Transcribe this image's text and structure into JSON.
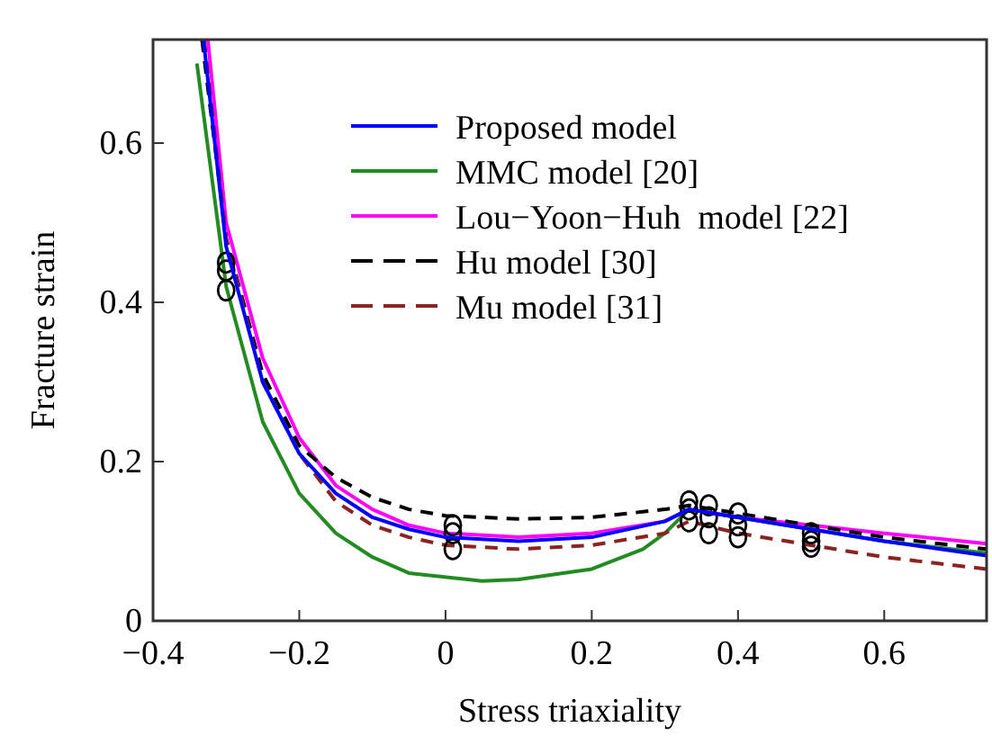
{
  "chart_data": {
    "type": "line",
    "xlabel": "Stress triaxiality",
    "ylabel": "Fracture strain",
    "xlim": [
      -0.4,
      0.74
    ],
    "ylim": [
      0,
      0.73
    ],
    "xticks": [
      {
        "value": -0.4,
        "label": "−0.4"
      },
      {
        "value": -0.2,
        "label": "−0.2"
      },
      0,
      0.2,
      0.4,
      0.6
    ],
    "yticks": [
      0,
      0.2,
      0.4,
      0.6
    ],
    "legend": "top right",
    "grid": false,
    "series": [
      {
        "name": "Proposed model",
        "color": "#0000ff",
        "line_style": "solid",
        "marker": "none",
        "x": [
          -0.331,
          -0.3,
          -0.25,
          -0.2,
          -0.15,
          -0.1,
          -0.05,
          0,
          0.1,
          0.2,
          0.3,
          0.333,
          0.4,
          0.5,
          0.6,
          0.74
        ],
        "values": [
          0.73,
          0.47,
          0.3,
          0.21,
          0.16,
          0.13,
          0.115,
          0.105,
          0.1,
          0.105,
          0.125,
          0.14,
          0.13,
          0.115,
          0.1,
          0.082
        ]
      },
      {
        "name": "MMC model [20]",
        "color": "#228b22",
        "line_style": "solid",
        "marker": "none",
        "x": [
          -0.34,
          -0.3,
          -0.25,
          -0.2,
          -0.15,
          -0.1,
          -0.05,
          0.05,
          0.1,
          0.2,
          0.27,
          0.3,
          0.333,
          0.4,
          0.5,
          0.6,
          0.74
        ],
        "values": [
          0.7,
          0.42,
          0.25,
          0.16,
          0.11,
          0.08,
          0.06,
          0.05,
          0.052,
          0.065,
          0.09,
          0.11,
          0.14,
          0.13,
          0.115,
          0.1,
          0.085
        ]
      },
      {
        "name": "Lou−Yoon−Huh  model [22]",
        "color": "#ff00ff",
        "line_style": "solid",
        "marker": "none",
        "x": [
          -0.325,
          -0.3,
          -0.25,
          -0.2,
          -0.15,
          -0.1,
          -0.05,
          0,
          0.1,
          0.2,
          0.3,
          0.333,
          0.4,
          0.5,
          0.6,
          0.74
        ],
        "values": [
          0.73,
          0.5,
          0.33,
          0.23,
          0.17,
          0.14,
          0.12,
          0.11,
          0.105,
          0.11,
          0.125,
          0.14,
          0.13,
          0.12,
          0.11,
          0.097
        ]
      },
      {
        "name": "Hu model [30]",
        "color": "#000000",
        "line_style": "dashed",
        "marker": "none",
        "x": [
          -0.333,
          -0.3,
          -0.25,
          -0.2,
          -0.15,
          -0.1,
          -0.05,
          0,
          0.1,
          0.2,
          0.3,
          0.333,
          0.4,
          0.5,
          0.6,
          0.74
        ],
        "values": [
          0.73,
          0.48,
          0.31,
          0.22,
          0.18,
          0.155,
          0.14,
          0.132,
          0.128,
          0.13,
          0.14,
          0.145,
          0.135,
          0.12,
          0.105,
          0.09
        ]
      },
      {
        "name": "Mu model [31]",
        "color": "#8b2323",
        "line_style": "dashed",
        "marker": "none",
        "x": [
          -0.33,
          -0.3,
          -0.25,
          -0.2,
          -0.15,
          -0.1,
          -0.05,
          0,
          0.1,
          0.2,
          0.3,
          0.333,
          0.4,
          0.5,
          0.6,
          0.74
        ],
        "values": [
          0.73,
          0.48,
          0.3,
          0.21,
          0.15,
          0.12,
          0.105,
          0.095,
          0.09,
          0.095,
          0.11,
          0.125,
          0.11,
          0.095,
          0.08,
          0.065
        ]
      },
      {
        "type": "scatter",
        "color": "#000000",
        "marker": "circle",
        "x": [
          -0.3,
          -0.3,
          -0.3,
          0.01,
          0.01,
          0.01,
          0.333,
          0.333,
          0.333,
          0.36,
          0.36,
          0.36,
          0.4,
          0.4,
          0.4,
          0.5,
          0.5,
          0.5
        ],
        "values": [
          0.45,
          0.44,
          0.415,
          0.12,
          0.11,
          0.09,
          0.15,
          0.14,
          0.125,
          0.145,
          0.13,
          0.11,
          0.135,
          0.12,
          0.105,
          0.11,
          0.1,
          0.093
        ]
      }
    ]
  }
}
